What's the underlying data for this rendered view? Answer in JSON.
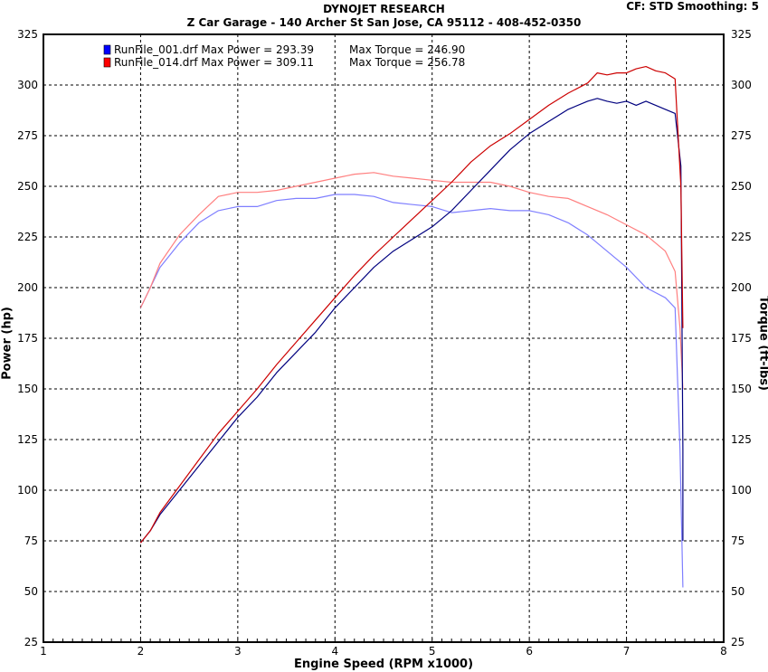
{
  "header": {
    "title": "DYNOJET RESEARCH",
    "subtitle": "Z Car Garage - 140 Archer St San Jose, CA 95112 - 408-452-0350",
    "settings": "CF: STD  Smoothing: 5"
  },
  "chart_data": {
    "type": "line",
    "title": "DYNOJET RESEARCH",
    "subtitle": "Z Car Garage - 140 Archer St San Jose, CA 95112 - 408-452-0350",
    "xlabel": "Engine Speed (RPM x1000)",
    "ylabel": "Power (hp)",
    "y2label": "Torque (ft-lbs)",
    "xlim": [
      1,
      8
    ],
    "ylim": [
      25,
      325
    ],
    "xticks": [
      "1",
      "2",
      "3",
      "4",
      "5",
      "6",
      "7",
      "8"
    ],
    "yticks": [
      "25",
      "50",
      "75",
      "100",
      "125",
      "150",
      "175",
      "200",
      "225",
      "250",
      "275",
      "300",
      "325"
    ],
    "grid": true,
    "legend_position": "top-left",
    "legend": [
      {
        "label": "RunFile_001.drf Max Power = 293.39",
        "torque_label": "Max Torque = 246.90",
        "color": "#0000ff"
      },
      {
        "label": "RunFile_014.drf Max Power = 309.11",
        "torque_label": "Max Torque = 256.78",
        "color": "#ff0000"
      }
    ],
    "series": [
      {
        "name": "RunFile_001.drf Power",
        "color": "#00007f",
        "kind": "power",
        "x": [
          2.0,
          2.1,
          2.2,
          2.4,
          2.6,
          2.8,
          3.0,
          3.2,
          3.4,
          3.6,
          3.8,
          4.0,
          4.2,
          4.4,
          4.6,
          4.8,
          5.0,
          5.2,
          5.4,
          5.6,
          5.8,
          6.0,
          6.2,
          6.4,
          6.6,
          6.7,
          6.8,
          6.9,
          7.0,
          7.1,
          7.2,
          7.3,
          7.4,
          7.5,
          7.56,
          7.58,
          7.58
        ],
        "y": [
          74,
          80,
          88,
          100,
          112,
          124,
          136,
          146,
          158,
          168,
          178,
          190,
          200,
          210,
          218,
          224,
          230,
          238,
          248,
          258,
          268,
          276,
          282,
          288,
          292,
          293.4,
          292,
          291,
          292,
          290,
          292,
          290,
          288,
          286,
          260,
          120,
          75
        ]
      },
      {
        "name": "RunFile_014.drf Power",
        "color": "#cc0000",
        "kind": "power",
        "x": [
          2.0,
          2.1,
          2.2,
          2.4,
          2.6,
          2.8,
          3.0,
          3.2,
          3.4,
          3.6,
          3.8,
          4.0,
          4.2,
          4.4,
          4.6,
          4.8,
          5.0,
          5.2,
          5.4,
          5.6,
          5.8,
          6.0,
          6.2,
          6.4,
          6.6,
          6.7,
          6.8,
          6.9,
          7.0,
          7.1,
          7.2,
          7.3,
          7.4,
          7.5,
          7.56,
          7.58
        ],
        "y": [
          74,
          80,
          89,
          102,
          115,
          128,
          139,
          150,
          162,
          173,
          184,
          195,
          206,
          216,
          225,
          234,
          243,
          252,
          262,
          270,
          276,
          283,
          290,
          296,
          301,
          306,
          305,
          306,
          306,
          308,
          309.1,
          307,
          306,
          303,
          250,
          180
        ]
      },
      {
        "name": "RunFile_001.drf Torque",
        "color": "#7f7fff",
        "kind": "torque",
        "x": [
          2.0,
          2.1,
          2.2,
          2.4,
          2.6,
          2.8,
          3.0,
          3.2,
          3.4,
          3.6,
          3.8,
          4.0,
          4.2,
          4.4,
          4.6,
          4.8,
          5.0,
          5.2,
          5.4,
          5.6,
          5.8,
          6.0,
          6.2,
          6.4,
          6.6,
          6.8,
          7.0,
          7.2,
          7.4,
          7.5,
          7.55,
          7.58
        ],
        "y": [
          190,
          200,
          210,
          222,
          232,
          238,
          240,
          240,
          243,
          244,
          244,
          246,
          246,
          245,
          242,
          241,
          240,
          237,
          238,
          239,
          238,
          238,
          236,
          232,
          226,
          218,
          210,
          200,
          195,
          190,
          120,
          52
        ]
      },
      {
        "name": "RunFile_014.drf Torque",
        "color": "#ff7f7f",
        "kind": "torque",
        "x": [
          2.0,
          2.1,
          2.2,
          2.4,
          2.6,
          2.8,
          3.0,
          3.2,
          3.4,
          3.6,
          3.8,
          4.0,
          4.2,
          4.4,
          4.6,
          4.8,
          5.0,
          5.2,
          5.4,
          5.6,
          5.8,
          6.0,
          6.2,
          6.4,
          6.6,
          6.8,
          7.0,
          7.2,
          7.4,
          7.5,
          7.55,
          7.58
        ],
        "y": [
          190,
          200,
          212,
          226,
          236,
          245,
          247,
          247,
          248,
          250,
          252,
          254,
          256,
          256.8,
          255,
          254,
          253,
          252,
          252,
          252,
          250,
          247,
          245,
          244,
          240,
          236,
          231,
          226,
          218,
          208,
          180,
          150
        ]
      }
    ]
  }
}
